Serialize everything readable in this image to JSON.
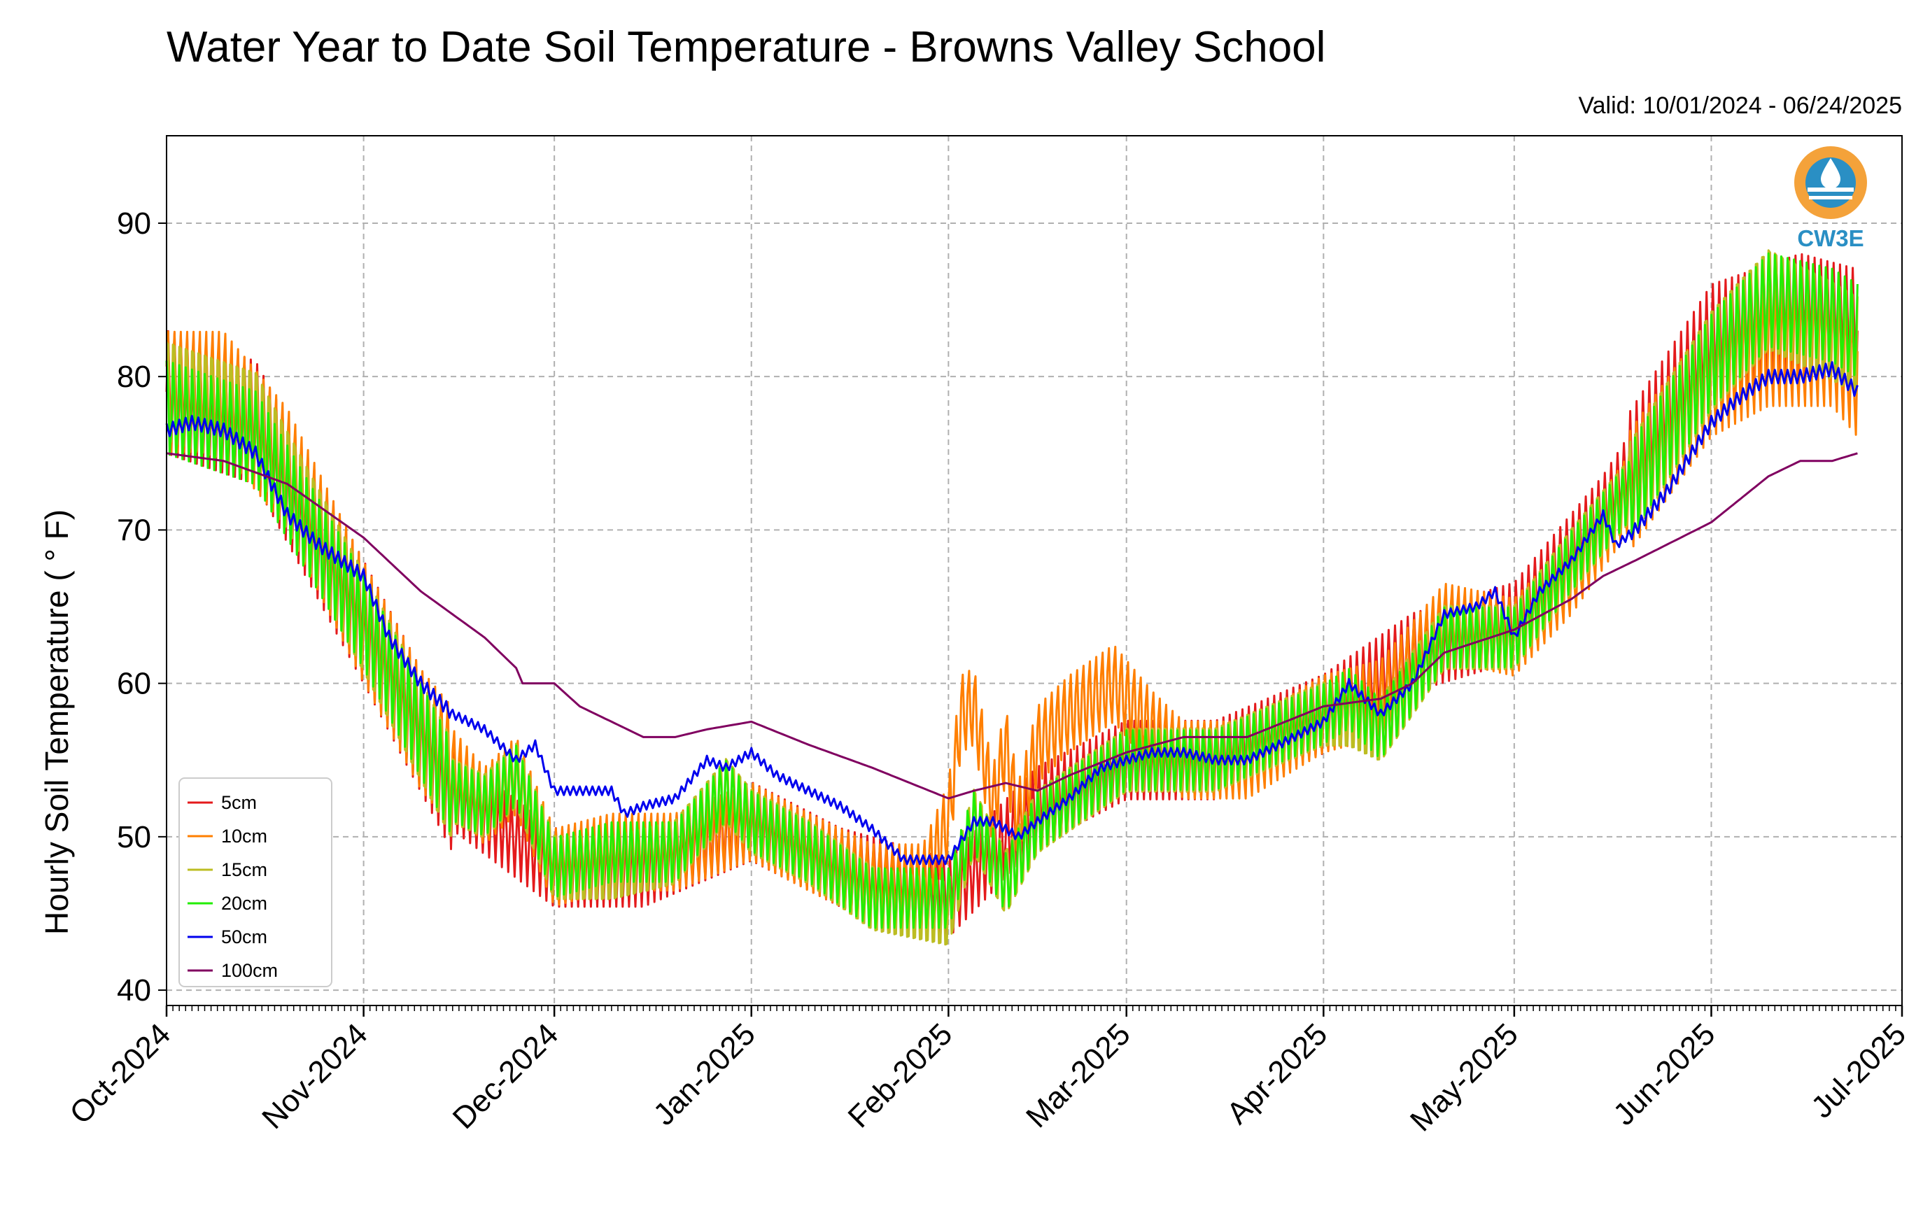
{
  "chart_data": {
    "type": "line",
    "title": "Water Year to Date Soil Temperature - Browns Valley School",
    "subtitle": "Valid: 10/01/2024 - 06/24/2025",
    "ylabel": "Hourly Soil Temperature ( ° F)",
    "xlabel": "",
    "ylim": [
      39,
      95.7
    ],
    "xlim": [
      "2024-10-01",
      "2025-07-01"
    ],
    "x_ticks": [
      {
        "date": "2024-10-01",
        "label": "Oct-2024"
      },
      {
        "date": "2024-11-01",
        "label": "Nov-2024"
      },
      {
        "date": "2024-12-01",
        "label": "Dec-2024"
      },
      {
        "date": "2025-01-01",
        "label": "Jan-2025"
      },
      {
        "date": "2025-02-01",
        "label": "Feb-2025"
      },
      {
        "date": "2025-03-01",
        "label": "Mar-2025"
      },
      {
        "date": "2025-04-01",
        "label": "Apr-2025"
      },
      {
        "date": "2025-05-01",
        "label": "May-2025"
      },
      {
        "date": "2025-06-01",
        "label": "Jun-2025"
      },
      {
        "date": "2025-07-01",
        "label": "Jul-2025"
      }
    ],
    "y_ticks": [
      40,
      50,
      60,
      70,
      80,
      90
    ],
    "grid": true,
    "legend_position": "lower-left",
    "logo_text": "CW3E",
    "series": [
      {
        "name": "5cm",
        "color": "#e41a1c",
        "width": 3,
        "points": [
          [
            "2024-10-01",
            79
          ],
          [
            "2024-10-15",
            77
          ],
          [
            "2024-11-01",
            64
          ],
          [
            "2024-11-15",
            53
          ],
          [
            "2024-12-01",
            48
          ],
          [
            "2024-12-15",
            48
          ],
          [
            "2025-01-01",
            51
          ],
          [
            "2025-01-15",
            48
          ],
          [
            "2025-02-01",
            46
          ],
          [
            "2025-02-15",
            52
          ],
          [
            "2025-03-01",
            55
          ],
          [
            "2025-03-15",
            55
          ],
          [
            "2025-04-01",
            58
          ],
          [
            "2025-04-15",
            62
          ],
          [
            "2025-05-01",
            64
          ],
          [
            "2025-05-15",
            71
          ],
          [
            "2025-06-01",
            82
          ],
          [
            "2025-06-15",
            84
          ],
          [
            "2025-06-24",
            83
          ]
        ]
      },
      {
        "name": "10cm",
        "color": "#ff7f00",
        "width": 3,
        "points": [
          [
            "2024-10-01",
            79
          ],
          [
            "2024-10-10",
            79
          ],
          [
            "2024-10-20",
            74
          ],
          [
            "2024-11-01",
            64
          ],
          [
            "2024-11-10",
            57
          ],
          [
            "2024-11-20",
            52
          ],
          [
            "2024-11-25",
            54
          ],
          [
            "2024-12-01",
            48
          ],
          [
            "2024-12-10",
            49
          ],
          [
            "2024-12-20",
            49
          ],
          [
            "2025-01-01",
            51
          ],
          [
            "2025-01-10",
            49
          ],
          [
            "2025-01-20",
            47
          ],
          [
            "2025-01-28",
            47
          ],
          [
            "2025-02-01",
            51
          ],
          [
            "2025-02-03",
            58
          ],
          [
            "2025-02-05",
            58.5
          ],
          [
            "2025-02-08",
            52
          ],
          [
            "2025-02-10",
            56
          ],
          [
            "2025-02-12",
            51
          ],
          [
            "2025-02-15",
            56
          ],
          [
            "2025-02-20",
            58
          ],
          [
            "2025-02-27",
            60
          ],
          [
            "2025-03-05",
            57
          ],
          [
            "2025-03-10",
            55
          ],
          [
            "2025-03-15",
            55
          ],
          [
            "2025-03-20",
            55
          ],
          [
            "2025-04-01",
            58
          ],
          [
            "2025-04-10",
            59
          ],
          [
            "2025-04-20",
            64
          ],
          [
            "2025-05-01",
            63
          ],
          [
            "2025-05-10",
            67
          ],
          [
            "2025-05-20",
            73
          ],
          [
            "2025-06-01",
            80
          ],
          [
            "2025-06-10",
            82
          ],
          [
            "2025-06-20",
            82
          ],
          [
            "2025-06-24",
            80
          ]
        ]
      },
      {
        "name": "15cm",
        "color": "#bcbd22",
        "width": 3,
        "points": [
          [
            "2024-10-01",
            79
          ],
          [
            "2024-10-15",
            77
          ],
          [
            "2024-11-01",
            64
          ],
          [
            "2024-11-15",
            53
          ],
          [
            "2024-11-20",
            52
          ],
          [
            "2024-11-25",
            54
          ],
          [
            "2024-12-01",
            48
          ],
          [
            "2024-12-10",
            48
          ],
          [
            "2024-12-20",
            49
          ],
          [
            "2024-12-28",
            53
          ],
          [
            "2025-01-01",
            51
          ],
          [
            "2025-01-10",
            49
          ],
          [
            "2025-01-20",
            46
          ],
          [
            "2025-02-01",
            45
          ],
          [
            "2025-02-05",
            51
          ],
          [
            "2025-02-10",
            47
          ],
          [
            "2025-02-15",
            51
          ],
          [
            "2025-03-01",
            55
          ],
          [
            "2025-03-15",
            55
          ],
          [
            "2025-04-01",
            58
          ],
          [
            "2025-04-05",
            58
          ],
          [
            "2025-04-10",
            57
          ],
          [
            "2025-04-20",
            63
          ],
          [
            "2025-05-01",
            63
          ],
          [
            "2025-05-10",
            68
          ],
          [
            "2025-05-20",
            73
          ],
          [
            "2025-06-01",
            81
          ],
          [
            "2025-06-10",
            85
          ],
          [
            "2025-06-20",
            83
          ],
          [
            "2025-06-24",
            82
          ]
        ]
      },
      {
        "name": "20cm",
        "color": "#22ee00",
        "width": 3,
        "points": [
          [
            "2024-10-01",
            78
          ],
          [
            "2024-10-15",
            76
          ],
          [
            "2024-11-01",
            64
          ],
          [
            "2024-11-15",
            53
          ],
          [
            "2024-11-20",
            52
          ],
          [
            "2024-11-25",
            54
          ],
          [
            "2024-12-01",
            48
          ],
          [
            "2024-12-10",
            49
          ],
          [
            "2024-12-20",
            49
          ],
          [
            "2024-12-28",
            53
          ],
          [
            "2025-01-01",
            51
          ],
          [
            "2025-01-10",
            49
          ],
          [
            "2025-01-20",
            46
          ],
          [
            "2025-02-01",
            46
          ],
          [
            "2025-02-05",
            51
          ],
          [
            "2025-02-10",
            47
          ],
          [
            "2025-02-15",
            51
          ],
          [
            "2025-03-01",
            55
          ],
          [
            "2025-03-15",
            55
          ],
          [
            "2025-04-01",
            58
          ],
          [
            "2025-04-05",
            59
          ],
          [
            "2025-04-10",
            57
          ],
          [
            "2025-04-20",
            63
          ],
          [
            "2025-05-01",
            63
          ],
          [
            "2025-05-10",
            68
          ],
          [
            "2025-05-20",
            73
          ],
          [
            "2025-06-01",
            81
          ],
          [
            "2025-06-10",
            85
          ],
          [
            "2025-06-20",
            84
          ],
          [
            "2025-06-24",
            83
          ]
        ]
      },
      {
        "name": "50cm",
        "color": "#0000ee",
        "width": 3,
        "points": [
          [
            "2024-10-01",
            76.5
          ],
          [
            "2024-10-05",
            77
          ],
          [
            "2024-10-10",
            76.5
          ],
          [
            "2024-10-15",
            75
          ],
          [
            "2024-10-20",
            71
          ],
          [
            "2024-10-25",
            69
          ],
          [
            "2024-11-01",
            67
          ],
          [
            "2024-11-05",
            63
          ],
          [
            "2024-11-10",
            60
          ],
          [
            "2024-11-15",
            58
          ],
          [
            "2024-11-20",
            57
          ],
          [
            "2024-11-25",
            55
          ],
          [
            "2024-11-28",
            56
          ],
          [
            "2024-12-01",
            53
          ],
          [
            "2024-12-05",
            53
          ],
          [
            "2024-12-10",
            53
          ],
          [
            "2024-12-12",
            51.5
          ],
          [
            "2024-12-15",
            52
          ],
          [
            "2024-12-20",
            52.5
          ],
          [
            "2024-12-25",
            55
          ],
          [
            "2024-12-28",
            54.5
          ],
          [
            "2025-01-01",
            55.5
          ],
          [
            "2025-01-05",
            54
          ],
          [
            "2025-01-10",
            53
          ],
          [
            "2025-01-15",
            52
          ],
          [
            "2025-01-20",
            50.5
          ],
          [
            "2025-01-25",
            48.5
          ],
          [
            "2025-02-01",
            48.5
          ],
          [
            "2025-02-05",
            51
          ],
          [
            "2025-02-08",
            51
          ],
          [
            "2025-02-12",
            50
          ],
          [
            "2025-02-15",
            51
          ],
          [
            "2025-02-20",
            52.5
          ],
          [
            "2025-02-25",
            54.5
          ],
          [
            "2025-03-01",
            55
          ],
          [
            "2025-03-05",
            55.5
          ],
          [
            "2025-03-10",
            55.5
          ],
          [
            "2025-03-15",
            55
          ],
          [
            "2025-03-20",
            55
          ],
          [
            "2025-03-25",
            56
          ],
          [
            "2025-04-01",
            57.5
          ],
          [
            "2025-04-05",
            60
          ],
          [
            "2025-04-10",
            58
          ],
          [
            "2025-04-15",
            60
          ],
          [
            "2025-04-20",
            64.5
          ],
          [
            "2025-04-25",
            65
          ],
          [
            "2025-04-28",
            66
          ],
          [
            "2025-05-01",
            63
          ],
          [
            "2025-05-05",
            66
          ],
          [
            "2025-05-10",
            68
          ],
          [
            "2025-05-15",
            71
          ],
          [
            "2025-05-17",
            69
          ],
          [
            "2025-05-20",
            70
          ],
          [
            "2025-05-25",
            72.5
          ],
          [
            "2025-06-01",
            77
          ],
          [
            "2025-06-05",
            78.5
          ],
          [
            "2025-06-10",
            80
          ],
          [
            "2025-06-15",
            80
          ],
          [
            "2025-06-20",
            80.5
          ],
          [
            "2025-06-24",
            79
          ]
        ]
      },
      {
        "name": "100cm",
        "color": "#800060",
        "width": 3,
        "points": [
          [
            "2024-10-01",
            75
          ],
          [
            "2024-10-10",
            74.5
          ],
          [
            "2024-10-20",
            73
          ],
          [
            "2024-11-01",
            69.5
          ],
          [
            "2024-11-10",
            66
          ],
          [
            "2024-11-20",
            63
          ],
          [
            "2024-11-25",
            61
          ],
          [
            "2024-11-26",
            60
          ],
          [
            "2024-12-01",
            60
          ],
          [
            "2024-12-05",
            58.5
          ],
          [
            "2024-12-10",
            57.5
          ],
          [
            "2024-12-15",
            56.5
          ],
          [
            "2024-12-20",
            56.5
          ],
          [
            "2024-12-25",
            57
          ],
          [
            "2025-01-01",
            57.5
          ],
          [
            "2025-01-10",
            56
          ],
          [
            "2025-01-20",
            54.5
          ],
          [
            "2025-02-01",
            52.5
          ],
          [
            "2025-02-05",
            53
          ],
          [
            "2025-02-10",
            53.5
          ],
          [
            "2025-02-15",
            53
          ],
          [
            "2025-02-20",
            54
          ],
          [
            "2025-03-01",
            55.5
          ],
          [
            "2025-03-10",
            56.5
          ],
          [
            "2025-03-20",
            56.5
          ],
          [
            "2025-04-01",
            58.5
          ],
          [
            "2025-04-10",
            59
          ],
          [
            "2025-04-15",
            60
          ],
          [
            "2025-04-20",
            62
          ],
          [
            "2025-05-01",
            63.5
          ],
          [
            "2025-05-10",
            65.5
          ],
          [
            "2025-05-15",
            67
          ],
          [
            "2025-05-20",
            68
          ],
          [
            "2025-06-01",
            70.5
          ],
          [
            "2025-06-10",
            73.5
          ],
          [
            "2025-06-15",
            74.5
          ],
          [
            "2025-06-20",
            74.5
          ],
          [
            "2025-06-24",
            75
          ]
        ]
      }
    ]
  }
}
